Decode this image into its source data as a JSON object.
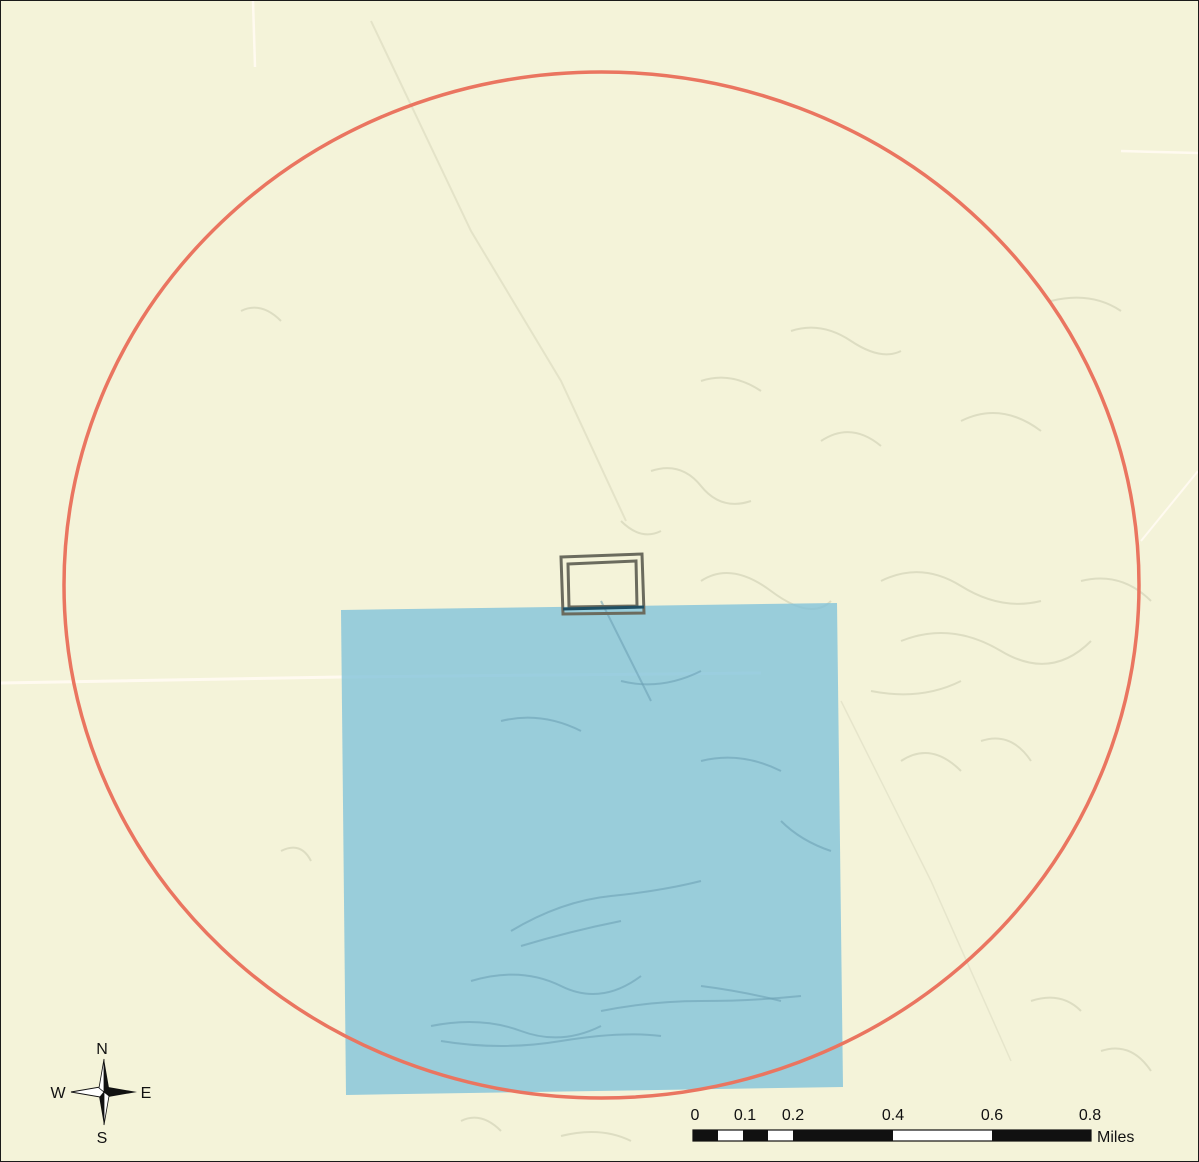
{
  "map": {
    "colors": {
      "background": "#f4f3d9",
      "buffer_ring": "#ea7560",
      "blue_area": "#7fc1da",
      "blue_area_opacity": 0.78,
      "site_outline": "#6b6b5e",
      "road": "#fffaf0",
      "terrain_shade": "#ddddc2"
    },
    "north_arrow": {
      "north_label": "N",
      "south_label": "S",
      "east_label": "E",
      "west_label": "W"
    },
    "scale_bar": {
      "tick_labels": [
        "0",
        "0.1",
        "0.2",
        "0.4",
        "0.6",
        "0.8"
      ],
      "unit_label": "Miles"
    }
  }
}
